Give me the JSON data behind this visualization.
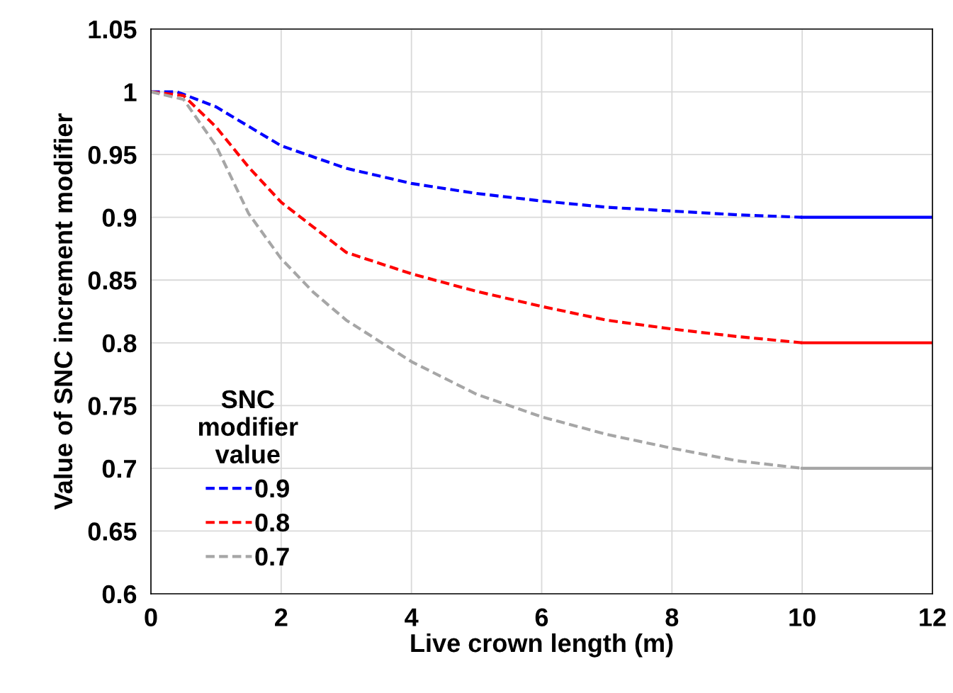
{
  "chart_data": {
    "type": "line",
    "xlabel": "Live crown length (m)",
    "ylabel": "Value of SNC increment modifier",
    "legend_title": "SNC modifier value",
    "xlim": [
      0,
      12
    ],
    "xticks": [
      0,
      2,
      4,
      6,
      8,
      10,
      12
    ],
    "ylim": [
      0.6,
      1.05
    ],
    "yticks": [
      {
        "value": 0.6,
        "label": "0.6"
      },
      {
        "value": 0.65,
        "label": "0.65"
      },
      {
        "value": 0.7,
        "label": "0.7"
      },
      {
        "value": 0.75,
        "label": "0.75"
      },
      {
        "value": 0.8,
        "label": "0.8"
      },
      {
        "value": 0.85,
        "label": "0.85"
      },
      {
        "value": 0.9,
        "label": "0.9"
      },
      {
        "value": 0.95,
        "label": "0.95"
      },
      {
        "value": 1,
        "label": "1"
      },
      {
        "value": 1.05,
        "label": "1.05"
      }
    ],
    "grid": true,
    "legend": "bottom left",
    "marker": "none",
    "series": [
      {
        "name": "0.9",
        "color": "#0000ff",
        "line_style": "dashed",
        "x": [
          0,
          0.4,
          0.6,
          1,
          2,
          3,
          4,
          5,
          6,
          7,
          8,
          9,
          10
        ],
        "values": [
          1,
          1,
          0.996,
          0.988,
          0.957,
          0.939,
          0.927,
          0.919,
          0.913,
          0.908,
          0.905,
          0.902,
          0.9
        ]
      },
      {
        "name": "0.8",
        "color": "#ff0000",
        "line_style": "dashed",
        "x": [
          0,
          0.5,
          1,
          1.5,
          2,
          3,
          4,
          5,
          6,
          7,
          8,
          9,
          10
        ],
        "values": [
          1,
          0.997,
          0.972,
          0.94,
          0.912,
          0.872,
          0.855,
          0.841,
          0.829,
          0.818,
          0.811,
          0.805,
          0.8
        ]
      },
      {
        "name": "0.7",
        "color": "#a6a6a6",
        "line_style": "dashed",
        "x": [
          0,
          0.5,
          1,
          1.5,
          2,
          2.5,
          3,
          4,
          5,
          6,
          7,
          8,
          9,
          10
        ],
        "values": [
          1,
          0.994,
          0.957,
          0.903,
          0.867,
          0.84,
          0.818,
          0.785,
          0.759,
          0.741,
          0.727,
          0.716,
          0.706,
          0.7
        ]
      },
      {
        "color": "#0000ff",
        "line_style": "solid",
        "x": [
          10,
          12
        ],
        "values": [
          0.9,
          0.9
        ]
      },
      {
        "color": "#ff0000",
        "line_style": "solid",
        "x": [
          10,
          12
        ],
        "values": [
          0.8,
          0.8
        ]
      },
      {
        "color": "#a6a6a6",
        "line_style": "solid",
        "x": [
          10,
          12
        ],
        "values": [
          0.7,
          0.7
        ]
      }
    ]
  }
}
